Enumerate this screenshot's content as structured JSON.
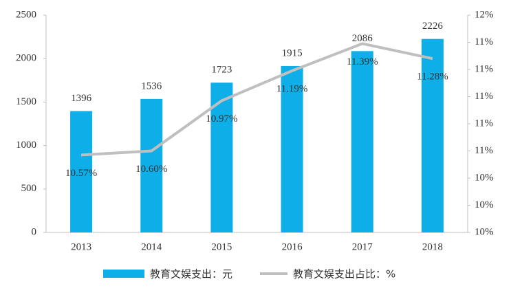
{
  "chart_data": {
    "type": "bar-line",
    "categories": [
      "2013",
      "2014",
      "2015",
      "2016",
      "2017",
      "2018"
    ],
    "series": [
      {
        "name": "教育文娱支出：元",
        "type": "bar",
        "color": "#0eaee8",
        "values": [
          1396,
          1536,
          1723,
          1915,
          2086,
          2226
        ]
      },
      {
        "name": "教育文娱支出占比：%",
        "type": "line",
        "axis": "y2",
        "color": "#bfbfbf",
        "values": [
          10.57,
          10.6,
          10.97,
          11.19,
          11.39,
          11.28
        ],
        "value_labels": [
          "10.57%",
          "10.60%",
          "10.97%",
          "11.19%",
          "11.39%",
          "11.28%"
        ]
      }
    ],
    "ylim": [
      0,
      2500
    ],
    "yticks": [
      0,
      500,
      1000,
      1500,
      2000,
      2500
    ],
    "y2lim": [
      10,
      11.6
    ],
    "y2ticks": [
      {
        "value": 10,
        "label": "10%"
      },
      {
        "value": 10.2,
        "label": "10%"
      },
      {
        "value": 10.4,
        "label": "10%"
      },
      {
        "value": 10.6,
        "label": "11%"
      },
      {
        "value": 10.8,
        "label": "11%"
      },
      {
        "value": 11.0,
        "label": "11%"
      },
      {
        "value": 11.2,
        "label": "11%"
      },
      {
        "value": 11.4,
        "label": "11%"
      },
      {
        "value": 11.6,
        "label": "12%"
      }
    ],
    "legend": "bottom"
  }
}
